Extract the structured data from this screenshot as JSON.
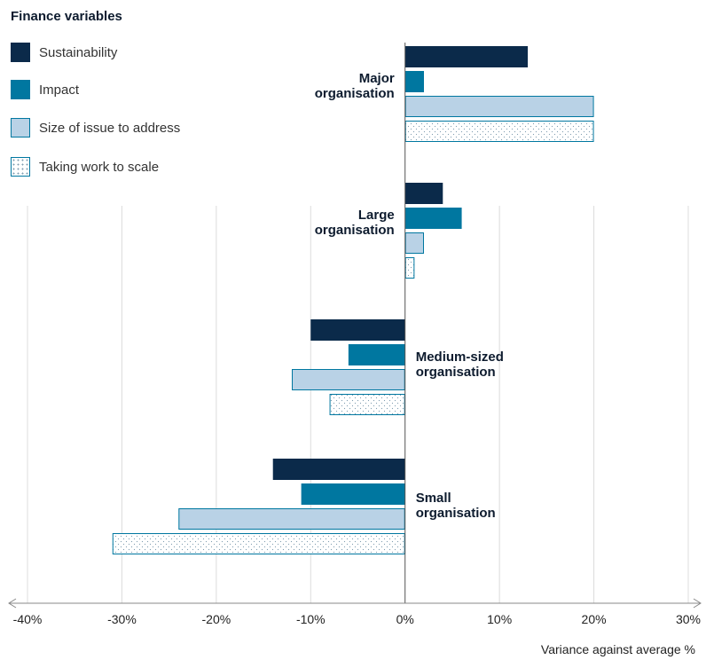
{
  "legend": {
    "title": "Finance variables",
    "items": [
      {
        "label": "Sustainability",
        "color": "#0b2a4a",
        "pattern": "solid"
      },
      {
        "label": "Impact",
        "color": "#0077a0",
        "pattern": "solid"
      },
      {
        "label": "Size of issue to address",
        "color": "#b9d2e6",
        "pattern": "solid"
      },
      {
        "label": "Taking work to scale",
        "color": "#ffffff",
        "pattern": "dotted"
      }
    ]
  },
  "chart_data": {
    "type": "bar",
    "orientation": "horizontal",
    "xlabel": "Variance against average %",
    "xlim": [
      -40,
      30
    ],
    "xticks": [
      "-40%",
      "-30%",
      "-20%",
      "-10%",
      "0%",
      "10%",
      "20%",
      "30%"
    ],
    "categories": [
      {
        "line1": "Major",
        "line2": "organisation"
      },
      {
        "line1": "Large",
        "line2": "organisation"
      },
      {
        "line1": "Medium-sized",
        "line2": "organisation"
      },
      {
        "line1": "Small",
        "line2": "organisation"
      }
    ],
    "series": [
      {
        "name": "Sustainability",
        "values": [
          13,
          4,
          -10,
          -14
        ]
      },
      {
        "name": "Impact",
        "values": [
          2,
          6,
          -6,
          -11
        ]
      },
      {
        "name": "Size of issue to address",
        "values": [
          20,
          2,
          -12,
          -24
        ]
      },
      {
        "name": "Taking work to scale",
        "values": [
          20,
          1,
          -8,
          -31
        ]
      }
    ]
  }
}
